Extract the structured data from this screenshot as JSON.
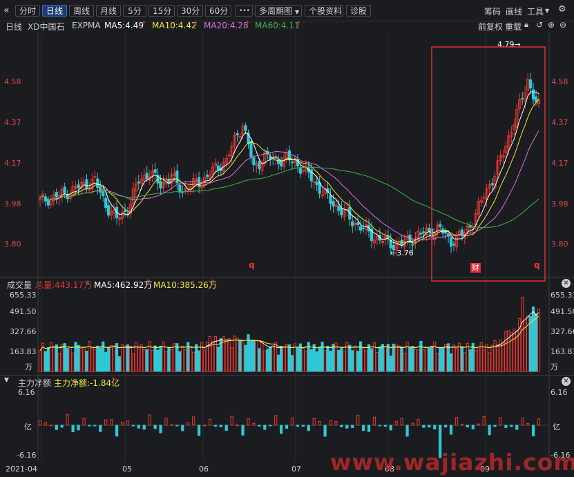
{
  "toolbar": {
    "back_icon": "«",
    "tabs": [
      "分时",
      "日线",
      "周线",
      "月线",
      "5分",
      "15分",
      "30分",
      "60分"
    ],
    "active_tab": "日线",
    "more_label": "•••",
    "multi_period_label": "多周期图",
    "stock_info_label": "个股资料",
    "diagnose_label": "诊股",
    "right_items": [
      "筹码",
      "画线",
      "工具"
    ]
  },
  "main_legend": {
    "period": "日线",
    "stock_name": "XD中国石",
    "indicator": "EXPMA",
    "ma5": "MA5:4.49",
    "ma10": "MA10:4.42",
    "ma20": "MA20:4.28",
    "ma60": "MA60:4.11",
    "adjust": "前复权",
    "overlay": "重载"
  },
  "price_axis": [
    "4.58",
    "4.37",
    "4.17",
    "3.98",
    "3.80"
  ],
  "markers": {
    "high_label": "4.79",
    "low_label": "3.76",
    "event_q1": "q",
    "event_q2": "q",
    "event_cai": "财"
  },
  "volume_legend": {
    "title": "成交量",
    "total": "总量:443.17万",
    "ma5": "MA5:462.92万",
    "ma10": "MA10:385.26万"
  },
  "volume_axis": [
    "655.33",
    "491.50",
    "327.66",
    "163.83",
    "万"
  ],
  "flow_legend": {
    "title": "主力净额",
    "value": "主力净额:-1.84亿"
  },
  "flow_axis": [
    "6.16",
    "亿",
    "-6.16"
  ],
  "date_axis": [
    "2021-04",
    "05",
    "06",
    "07",
    "08",
    "09"
  ],
  "watermark": "www.wajiazhi.com",
  "colors": {
    "up": "#e8382f",
    "down": "#2fc9d6",
    "ma5": "#ffffff",
    "ma10": "#f2e83a",
    "ma20": "#e070e0",
    "ma60": "#3fb34a",
    "highlight_box": "#e03030"
  },
  "chart_data": {
    "type": "candlestick",
    "price_range": [
      3.7,
      4.85
    ],
    "high": 4.79,
    "low": 3.76,
    "close_latest_approx": 4.49
  }
}
